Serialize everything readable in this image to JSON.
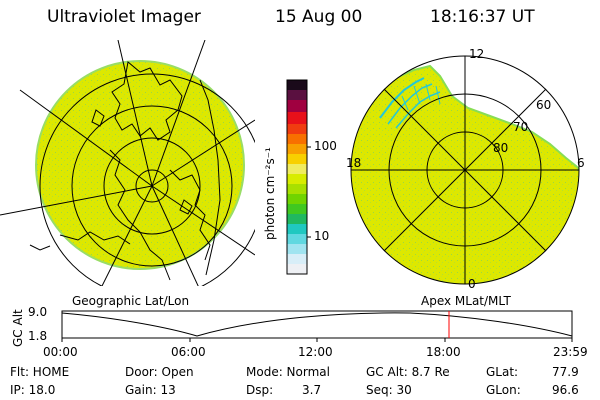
{
  "header": {
    "title": "Ultraviolet Imager",
    "date": "15 Aug 00",
    "time": "18:16:37 UT"
  },
  "geo_label": "Geographic Lat/Lon",
  "apex_label": "Apex MLat/MLT",
  "colorbar": {
    "unit_label": "photon cm⁻²s⁻¹",
    "ticks": [
      "100",
      "10"
    ]
  },
  "polar": {
    "mlt_labels": [
      "12",
      "18",
      "6",
      "0"
    ],
    "lat_labels": [
      "60",
      "70",
      "80"
    ]
  },
  "altitude_plot": {
    "ylabel": "GC Alt",
    "yticks": [
      "9.0",
      "1.8"
    ],
    "xticks": [
      "00:00",
      "06:00",
      "12:00",
      "18:00",
      "23:59"
    ],
    "marker_time": "18:16",
    "marker_color": "#ff0000"
  },
  "info": {
    "flt": "Flt: HOME",
    "ip": "IP: 18.0",
    "door": "Door: Open",
    "gain": "Gain: 13",
    "mode": "Mode: Normal",
    "dsp_label": "Dsp:",
    "dsp_value": "3.7",
    "gcalt": "GC Alt: 8.7 Re",
    "seq": "Seq: 30",
    "glat_label": "GLat:",
    "glat_value": "77.9",
    "glon_label": "GLon:",
    "glon_value": "96.6"
  },
  "colors": {
    "fill": "#dde800",
    "fill_edge": "#88dd55",
    "accent_cyan": "#22c8d8"
  }
}
